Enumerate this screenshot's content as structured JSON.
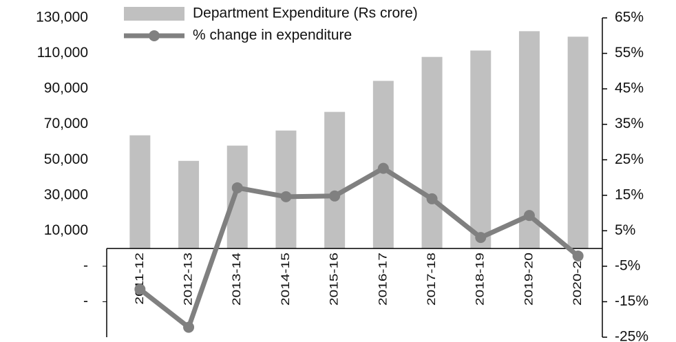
{
  "chart_data": {
    "type": "bar",
    "categories": [
      "2011-12",
      "2012-13",
      "2013-14",
      "2014-15",
      "2015-16",
      "2016-17",
      "2017-18",
      "2018-19",
      "2019-20",
      "2020-21"
    ],
    "series": [
      {
        "name": "Department Expenditure (Rs crore)",
        "color": "#c0c0c0",
        "values": [
          63800,
          49400,
          58000,
          66500,
          77000,
          94500,
          108000,
          111600,
          122500,
          119400
        ]
      },
      {
        "name": "% change in expenditure",
        "color": "#808080",
        "type": "line",
        "axis": "y2",
        "values": [
          -11.5,
          -22.2,
          17.1,
          14.6,
          14.8,
          22.6,
          14.0,
          3.1,
          9.3,
          -2.1
        ]
      }
    ],
    "ylim": [
      -50000,
      130000
    ],
    "yticks": [
      {
        "value": 130000,
        "label": "130,000"
      },
      {
        "value": 110000,
        "label": "110,000"
      },
      {
        "value": 90000,
        "label": "90,000"
      },
      {
        "value": 70000,
        "label": "70,000"
      },
      {
        "value": 50000,
        "label": "50,000"
      },
      {
        "value": 30000,
        "label": "30,000"
      },
      {
        "value": 10000,
        "label": "10,000"
      },
      {
        "value": -10000,
        "label": "-"
      },
      {
        "value": -30000,
        "label": "-"
      }
    ],
    "y2lim": [
      -25,
      65
    ],
    "y2ticks": [
      {
        "value": 65,
        "label": "65%"
      },
      {
        "value": 55,
        "label": "55%"
      },
      {
        "value": 45,
        "label": "45%"
      },
      {
        "value": 35,
        "label": "35%"
      },
      {
        "value": 25,
        "label": "25%"
      },
      {
        "value": 15,
        "label": "15%"
      },
      {
        "value": 5,
        "label": "5%"
      },
      {
        "value": -5,
        "label": "-5%"
      },
      {
        "value": -15,
        "label": "-15%"
      },
      {
        "value": -25,
        "label": "-25%"
      }
    ],
    "legend": "upper left"
  }
}
